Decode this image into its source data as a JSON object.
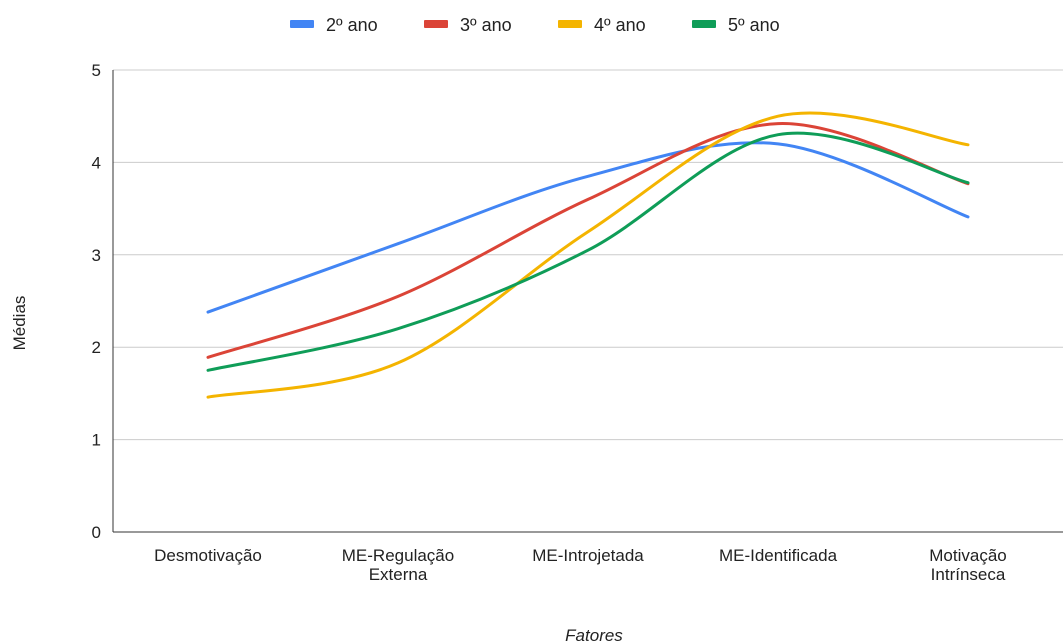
{
  "chart_data": {
    "type": "line",
    "title": "",
    "xlabel": "Fatores",
    "ylabel": "Médias",
    "ylim": [
      0,
      5
    ],
    "yticks": [
      0,
      1,
      2,
      3,
      4,
      5
    ],
    "grid": true,
    "legend_position": "top",
    "smooth": true,
    "categories": [
      [
        "Desmotivação"
      ],
      [
        "ME-Regulação",
        "Externa"
      ],
      [
        "ME-Introjetada"
      ],
      [
        "ME-Identificada"
      ],
      [
        "Motivação",
        "Intrínseca"
      ]
    ],
    "series": [
      {
        "name": "2º ano",
        "color": "#4285f4",
        "values": [
          2.38,
          3.12,
          3.85,
          4.2,
          3.41
        ]
      },
      {
        "name": "3º ano",
        "color": "#db4437",
        "values": [
          1.89,
          2.55,
          3.6,
          4.42,
          3.77
        ]
      },
      {
        "name": "4º ano",
        "color": "#f4b400",
        "values": [
          1.46,
          1.83,
          3.25,
          4.5,
          4.19
        ]
      },
      {
        "name": "5º ano",
        "color": "#0f9d58",
        "values": [
          1.75,
          2.2,
          3.05,
          4.3,
          3.78
        ]
      }
    ]
  }
}
